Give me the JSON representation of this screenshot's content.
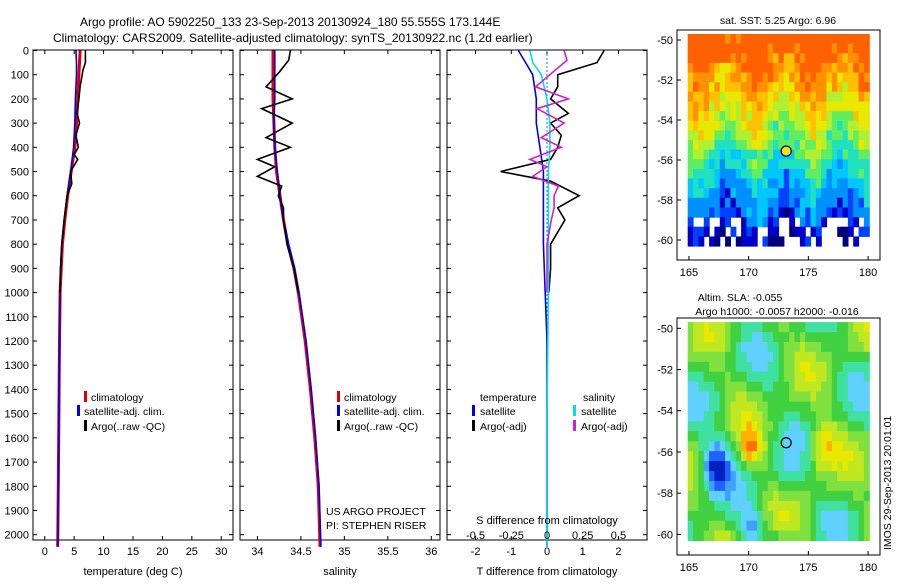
{
  "header": {
    "line1": "Argo profile: AO 5902250_133 23-Sep-2013 20130924_180 55.555S 173.144E",
    "line2": "Climatology: CARS2009. Satellite-adjusted climatology: synTS_20130922.nc (1.2d earlier)"
  },
  "colors": {
    "climatology": "#e00000",
    "satellite": "#0000ee",
    "argo": "#000000",
    "sat_salinity": "#00e0e0",
    "argo_salinity": "#d020d0"
  },
  "chart_data": [
    {
      "type": "line",
      "id": "temperature",
      "xlabel": "temperature (deg C)",
      "ylabel": "",
      "xlim": [
        -2,
        32
      ],
      "ylim": [
        2050,
        0
      ],
      "xticks": [
        0,
        5,
        10,
        15,
        20,
        25,
        30
      ],
      "yticks": [
        0,
        100,
        200,
        300,
        400,
        500,
        600,
        700,
        800,
        900,
        1000,
        1100,
        1200,
        1300,
        1400,
        1500,
        1600,
        1700,
        1800,
        1900,
        2000
      ],
      "legend": [
        "climatology",
        "satellite-adj. clim.",
        "Argo(..raw -QC)"
      ],
      "series": [
        {
          "name": "climatology",
          "depth": [
            0,
            50,
            100,
            200,
            300,
            400,
            500,
            600,
            700,
            800,
            900,
            1000,
            1200,
            1500,
            1800,
            2050
          ],
          "values": [
            6.0,
            5.9,
            5.8,
            5.6,
            5.4,
            5.1,
            4.5,
            3.9,
            3.4,
            3.0,
            2.8,
            2.6,
            2.5,
            2.4,
            2.3,
            2.2
          ]
        },
        {
          "name": "satellite-adj. clim.",
          "depth": [
            0,
            50,
            100,
            200,
            300,
            400,
            500,
            600,
            700,
            800,
            900,
            1000,
            1200,
            1500,
            1800,
            2050
          ],
          "values": [
            5.3,
            5.4,
            5.4,
            5.2,
            5.1,
            4.9,
            4.4,
            3.8,
            3.3,
            2.9,
            2.7,
            2.6,
            2.5,
            2.4,
            2.3,
            2.2
          ]
        },
        {
          "name": "Argo(..raw -QC)",
          "depth": [
            0,
            50,
            80,
            150,
            200,
            260,
            300,
            350,
            400,
            430,
            450,
            500,
            550,
            600,
            700,
            800,
            900,
            1000
          ],
          "values": [
            6.9,
            6.9,
            6.5,
            6.0,
            5.8,
            5.5,
            5.9,
            5.3,
            5.7,
            5.0,
            5.6,
            4.4,
            4.6,
            3.8,
            3.3,
            2.9,
            2.7,
            2.6
          ]
        }
      ]
    },
    {
      "type": "line",
      "id": "salinity",
      "xlabel": "salinity",
      "xlim": [
        33.8,
        36.1
      ],
      "ylim": [
        2050,
        0
      ],
      "xticks": [
        34,
        34.5,
        35,
        35.5,
        36
      ],
      "legend": [
        "climatology",
        "satellite-adj. clim.",
        "Argo(..raw -QC)"
      ],
      "annotation": [
        "US ARGO PROJECT",
        "PI: STEPHEN RISER"
      ],
      "series": [
        {
          "name": "climatology",
          "depth": [
            0,
            100,
            200,
            300,
            400,
            500,
            600,
            700,
            800,
            900,
            1000,
            1200,
            1400,
            1600,
            1800,
            2050
          ],
          "values": [
            34.18,
            34.18,
            34.18,
            34.19,
            34.2,
            34.22,
            34.26,
            34.3,
            34.35,
            34.42,
            34.47,
            34.55,
            34.61,
            34.66,
            34.7,
            34.72
          ]
        },
        {
          "name": "satellite-adj. clim.",
          "depth": [
            0,
            100,
            200,
            300,
            400,
            500,
            600,
            700,
            800,
            900,
            1000,
            1200,
            1400,
            1600,
            1800,
            2050
          ],
          "values": [
            34.2,
            34.2,
            34.2,
            34.19,
            34.2,
            34.23,
            34.26,
            34.3,
            34.36,
            34.43,
            34.48,
            34.56,
            34.62,
            34.67,
            34.71,
            34.73
          ]
        },
        {
          "name": "Argo(..raw -QC)",
          "depth": [
            0,
            40,
            90,
            150,
            200,
            240,
            300,
            360,
            400,
            450,
            480,
            520,
            560,
            600,
            650,
            700,
            800,
            900,
            1000
          ],
          "values": [
            34.38,
            34.36,
            34.25,
            34.1,
            34.4,
            34.05,
            34.4,
            34.1,
            34.38,
            34.0,
            34.2,
            34.0,
            34.28,
            34.24,
            34.3,
            34.3,
            34.34,
            34.42,
            34.47
          ]
        }
      ]
    },
    {
      "type": "line",
      "id": "difference",
      "xlabel": "T difference from climatology",
      "xlabel_top": "S difference from climatology",
      "xlim": [
        -2.8,
        2.8
      ],
      "ylim": [
        2050,
        0
      ],
      "xticks": [
        -2,
        -1,
        0,
        1,
        2
      ],
      "xticks_s": [
        -0.5,
        -0.25,
        0,
        0.25,
        0.5
      ],
      "legend_headings": [
        "temperature",
        "salinity"
      ],
      "legend": [
        "satellite",
        "Argo(-adj)",
        "satellite",
        "Argo(-adj)"
      ],
      "series": [
        {
          "name": "temperature satellite",
          "depth": [
            0,
            50,
            100,
            200,
            300,
            400,
            500,
            600,
            800,
            1000,
            1200,
            1500,
            1800,
            2050
          ],
          "values": [
            -0.8,
            -0.6,
            -0.4,
            -0.3,
            -0.3,
            -0.2,
            -0.1,
            -0.1,
            -0.1,
            -0.05,
            0,
            0,
            0,
            0
          ]
        },
        {
          "name": "temperature Argo(-adj)",
          "depth": [
            0,
            50,
            100,
            150,
            200,
            260,
            300,
            350,
            400,
            450,
            500,
            540,
            600,
            650,
            700,
            800,
            900,
            1000
          ],
          "values": [
            1.6,
            1.4,
            0.3,
            0.3,
            0.1,
            0.6,
            0.1,
            0.4,
            0.3,
            0.1,
            -1.3,
            0.1,
            0.9,
            0.3,
            0.5,
            0.1,
            0.1,
            0.05
          ]
        },
        {
          "name": "salinity satellite",
          "depth": [
            0,
            50,
            100,
            200,
            300,
            400,
            500,
            600,
            800,
            1000,
            1500,
            2050
          ],
          "values": [
            -0.12,
            -0.1,
            -0.04,
            0.0,
            0.02,
            0.02,
            0.01,
            0.01,
            0.01,
            0.01,
            0.0,
            0.0
          ]
        },
        {
          "name": "salinity Argo(-adj)",
          "depth": [
            0,
            40,
            80,
            150,
            200,
            240,
            300,
            360,
            400,
            450,
            480,
            520,
            560,
            600,
            650,
            700,
            800,
            900,
            1000
          ],
          "values": [
            0.12,
            0.14,
            0.06,
            -0.08,
            0.15,
            -0.07,
            0.12,
            -0.04,
            0.1,
            -0.12,
            0.0,
            -0.1,
            0.08,
            0.05,
            0.05,
            0.03,
            0.0,
            0.0,
            0.0
          ]
        }
      ]
    },
    {
      "type": "heatmap",
      "id": "sst_map",
      "title": "sat. SST: 5.25 Argo: 6.96",
      "xlim": [
        164,
        181
      ],
      "ylim": [
        -61,
        -49.5
      ],
      "xticks": [
        165,
        170,
        175,
        180
      ],
      "yticks": [
        -50,
        -52,
        -54,
        -56,
        -58,
        -60
      ],
      "argo_position": {
        "lon": 173.144,
        "lat": -55.555
      }
    },
    {
      "type": "heatmap",
      "id": "sla_map",
      "title": "Altim. SLA: -0.055",
      "subtitle": "Argo h1000: -0.0057 h2000: -0.016",
      "xlim": [
        164,
        181
      ],
      "ylim": [
        -61,
        -49.5
      ],
      "xticks": [
        165,
        170,
        175,
        180
      ],
      "yticks": [
        -50,
        -52,
        -54,
        -56,
        -58,
        -60
      ],
      "argo_position": {
        "lon": 173.144,
        "lat": -55.555
      },
      "stamp": "IMOS 29-Sep-2013 20:01:01"
    }
  ]
}
